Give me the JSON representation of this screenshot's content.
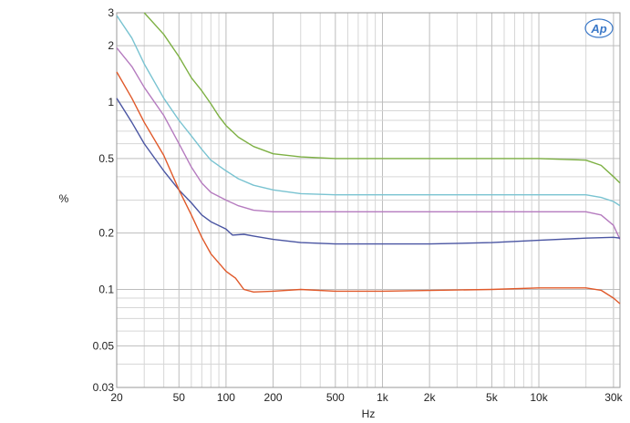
{
  "chart_data": {
    "type": "line",
    "xlabel": "Hz",
    "ylabel": "%",
    "xscale": "log",
    "yscale": "log",
    "xlim": [
      20,
      33000
    ],
    "ylim": [
      0.03,
      3
    ],
    "grid": true,
    "legend": "none",
    "logo_text": "Ap",
    "x_ticks": [
      {
        "value": 20,
        "label": "20"
      },
      {
        "value": 50,
        "label": "50"
      },
      {
        "value": 100,
        "label": "100"
      },
      {
        "value": 200,
        "label": "200"
      },
      {
        "value": 500,
        "label": "500"
      },
      {
        "value": 1000,
        "label": "1k"
      },
      {
        "value": 2000,
        "label": "2k"
      },
      {
        "value": 5000,
        "label": "5k"
      },
      {
        "value": 10000,
        "label": "10k"
      },
      {
        "value": 30000,
        "label": "30k"
      }
    ],
    "y_ticks": [
      {
        "value": 3,
        "label": "3"
      },
      {
        "value": 2,
        "label": "2"
      },
      {
        "value": 1,
        "label": "1"
      },
      {
        "value": 0.5,
        "label": "0.5"
      },
      {
        "value": 0.2,
        "label": "0.2"
      },
      {
        "value": 0.1,
        "label": "0.1"
      },
      {
        "value": 0.05,
        "label": "0.05"
      },
      {
        "value": 0.03,
        "label": "0.03"
      }
    ],
    "series": [
      {
        "color": "#7db043",
        "points": [
          [
            30,
            3.0
          ],
          [
            40,
            2.3
          ],
          [
            50,
            1.75
          ],
          [
            60,
            1.35
          ],
          [
            70,
            1.15
          ],
          [
            80,
            0.98
          ],
          [
            90,
            0.84
          ],
          [
            100,
            0.75
          ],
          [
            120,
            0.65
          ],
          [
            150,
            0.58
          ],
          [
            200,
            0.53
          ],
          [
            300,
            0.51
          ],
          [
            500,
            0.5
          ],
          [
            1000,
            0.5
          ],
          [
            5000,
            0.5
          ],
          [
            10000,
            0.5
          ],
          [
            20000,
            0.49
          ],
          [
            25000,
            0.46
          ],
          [
            30000,
            0.4
          ],
          [
            33000,
            0.37
          ]
        ]
      },
      {
        "color": "#79c3d1",
        "points": [
          [
            20,
            2.9
          ],
          [
            25,
            2.2
          ],
          [
            30,
            1.6
          ],
          [
            40,
            1.05
          ],
          [
            50,
            0.8
          ],
          [
            60,
            0.66
          ],
          [
            70,
            0.56
          ],
          [
            80,
            0.49
          ],
          [
            100,
            0.43
          ],
          [
            120,
            0.39
          ],
          [
            150,
            0.36
          ],
          [
            200,
            0.34
          ],
          [
            300,
            0.325
          ],
          [
            500,
            0.32
          ],
          [
            1000,
            0.32
          ],
          [
            5000,
            0.32
          ],
          [
            10000,
            0.32
          ],
          [
            20000,
            0.32
          ],
          [
            25000,
            0.31
          ],
          [
            30000,
            0.295
          ],
          [
            33000,
            0.28
          ]
        ]
      },
      {
        "color": "#b57bbf",
        "points": [
          [
            20,
            1.95
          ],
          [
            25,
            1.55
          ],
          [
            30,
            1.2
          ],
          [
            40,
            0.85
          ],
          [
            50,
            0.6
          ],
          [
            60,
            0.45
          ],
          [
            70,
            0.37
          ],
          [
            80,
            0.33
          ],
          [
            100,
            0.3
          ],
          [
            120,
            0.28
          ],
          [
            150,
            0.265
          ],
          [
            200,
            0.26
          ],
          [
            500,
            0.26
          ],
          [
            1000,
            0.26
          ],
          [
            5000,
            0.26
          ],
          [
            10000,
            0.26
          ],
          [
            20000,
            0.26
          ],
          [
            25000,
            0.25
          ],
          [
            30000,
            0.22
          ],
          [
            33000,
            0.185
          ]
        ]
      },
      {
        "color": "#4a55a2",
        "points": [
          [
            20,
            1.05
          ],
          [
            25,
            0.78
          ],
          [
            30,
            0.6
          ],
          [
            40,
            0.43
          ],
          [
            50,
            0.34
          ],
          [
            60,
            0.29
          ],
          [
            70,
            0.25
          ],
          [
            80,
            0.23
          ],
          [
            100,
            0.21
          ],
          [
            110,
            0.195
          ],
          [
            130,
            0.197
          ],
          [
            150,
            0.193
          ],
          [
            200,
            0.185
          ],
          [
            300,
            0.178
          ],
          [
            500,
            0.175
          ],
          [
            1000,
            0.175
          ],
          [
            2000,
            0.175
          ],
          [
            5000,
            0.178
          ],
          [
            10000,
            0.183
          ],
          [
            20000,
            0.188
          ],
          [
            30000,
            0.19
          ],
          [
            33000,
            0.188
          ]
        ]
      },
      {
        "color": "#e0592a",
        "points": [
          [
            20,
            1.45
          ],
          [
            25,
            1.05
          ],
          [
            30,
            0.78
          ],
          [
            40,
            0.52
          ],
          [
            50,
            0.34
          ],
          [
            60,
            0.25
          ],
          [
            70,
            0.19
          ],
          [
            80,
            0.155
          ],
          [
            100,
            0.125
          ],
          [
            115,
            0.115
          ],
          [
            130,
            0.1
          ],
          [
            150,
            0.097
          ],
          [
            200,
            0.098
          ],
          [
            300,
            0.1
          ],
          [
            500,
            0.098
          ],
          [
            1000,
            0.098
          ],
          [
            5000,
            0.1
          ],
          [
            10000,
            0.102
          ],
          [
            20000,
            0.102
          ],
          [
            25000,
            0.099
          ],
          [
            30000,
            0.09
          ],
          [
            33000,
            0.084
          ]
        ]
      }
    ]
  }
}
